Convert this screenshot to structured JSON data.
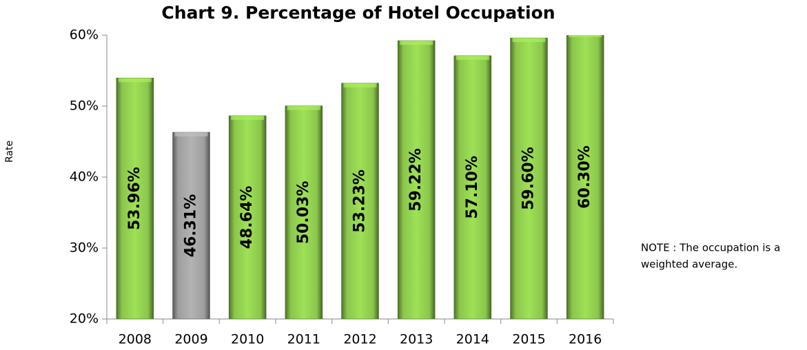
{
  "chart_data": {
    "type": "bar",
    "title": "Chart 9. Percentage of Hotel Occupation",
    "y_label": "Rate",
    "categories": [
      "2008",
      "2009",
      "2010",
      "2011",
      "2012",
      "2013",
      "2014",
      "2015",
      "2016"
    ],
    "values": [
      53.96,
      46.31,
      48.64,
      50.03,
      53.23,
      59.22,
      57.1,
      59.6,
      60.3
    ],
    "value_labels": [
      "53.96%",
      "46.31%",
      "48.64%",
      "50.03%",
      "53.23%",
      "59.22%",
      "57.10%",
      "59.60%",
      "60.30%"
    ],
    "colors": [
      "#92d050",
      "#a6a6a6",
      "#92d050",
      "#92d050",
      "#92d050",
      "#92d050",
      "#92d050",
      "#92d050",
      "#92d050"
    ],
    "ylim": [
      20,
      60
    ],
    "yticks": [
      {
        "value": 20,
        "label": "20%"
      },
      {
        "value": 30,
        "label": "30%"
      },
      {
        "value": 40,
        "label": "40%"
      },
      {
        "value": 50,
        "label": "50%"
      },
      {
        "value": 60,
        "label": "60%"
      }
    ],
    "note": [
      "NOTE : The occupation is a",
      "weighted average."
    ]
  }
}
